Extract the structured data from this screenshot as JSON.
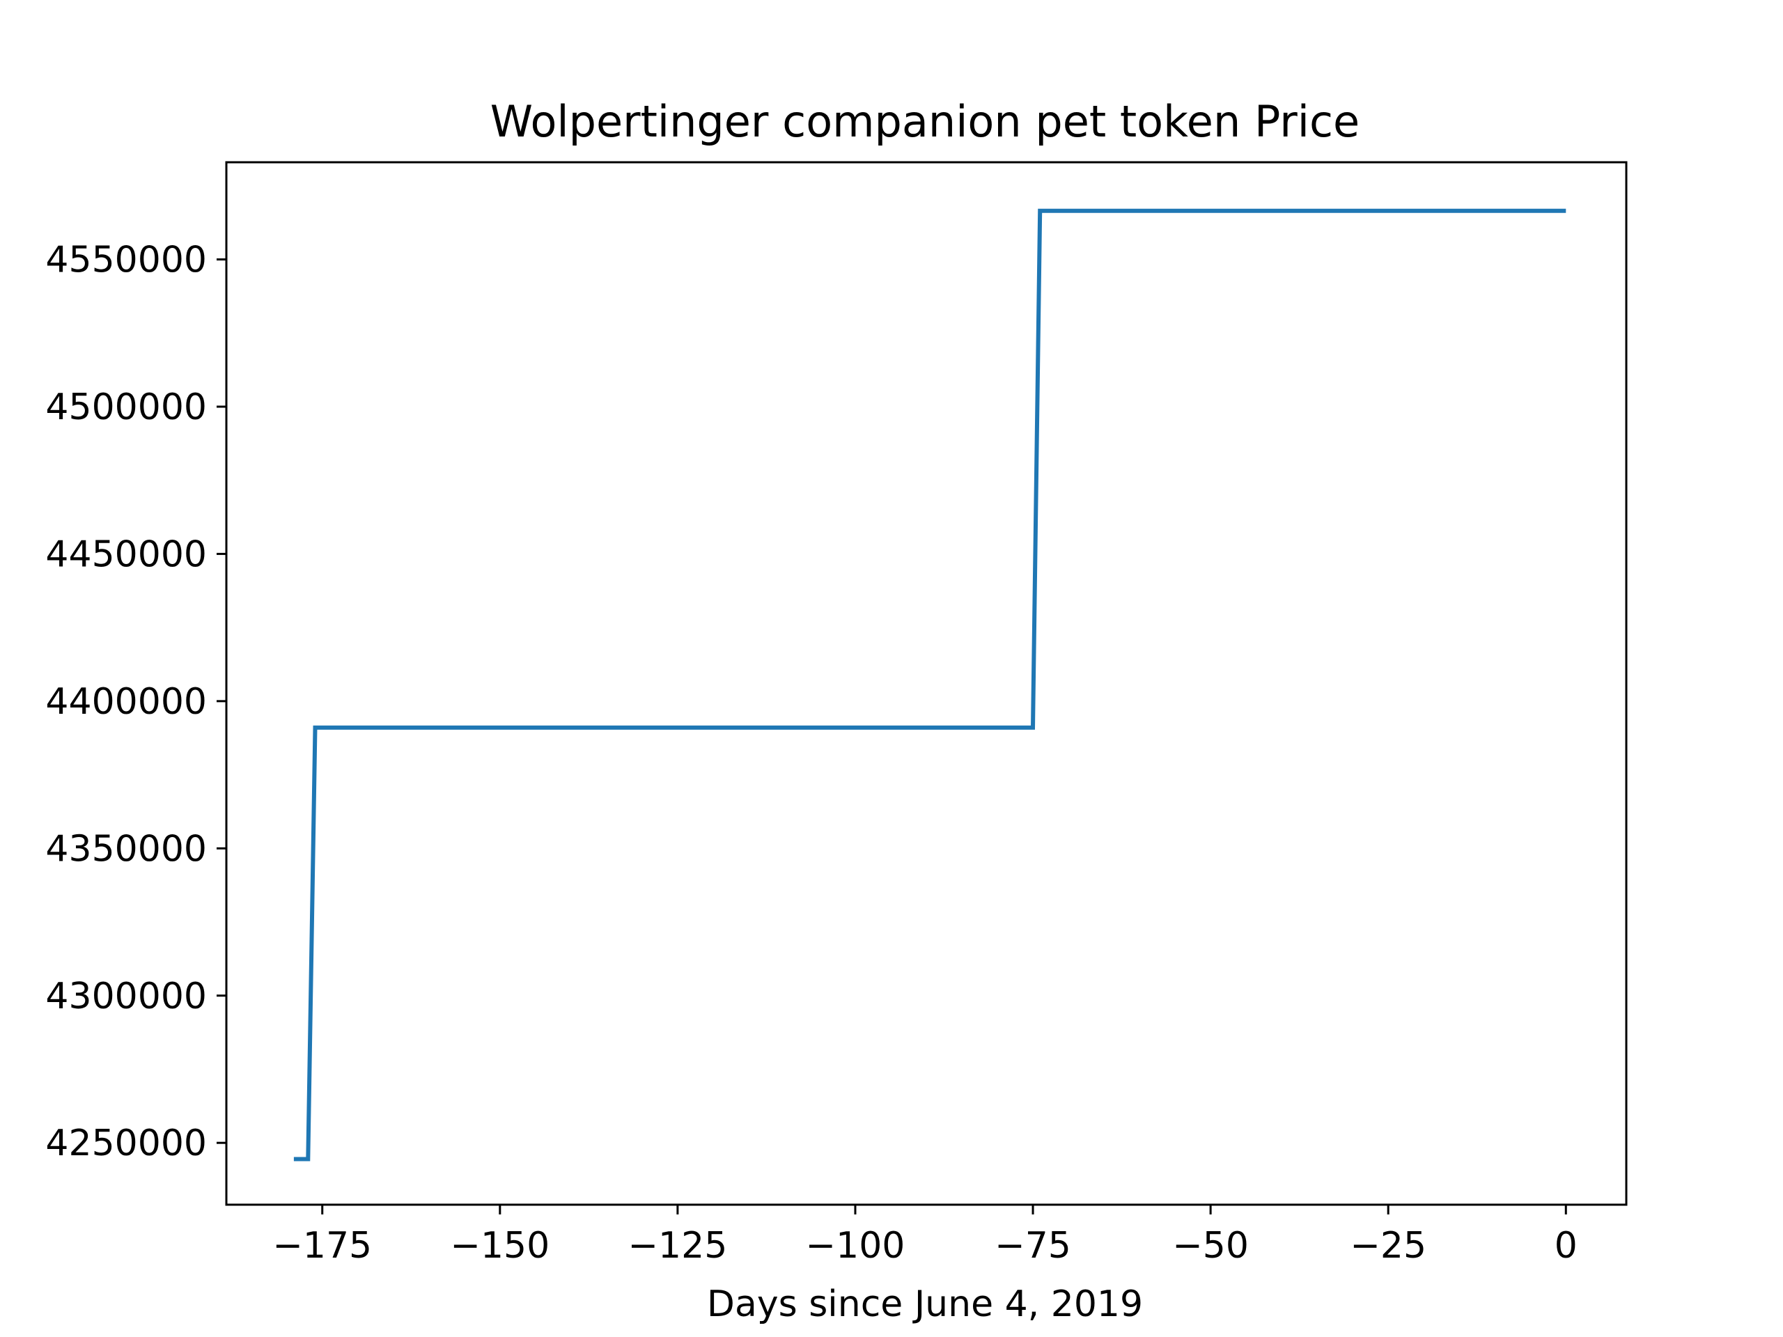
{
  "chart_data": {
    "type": "line",
    "title": "Wolpertinger companion pet token Price",
    "xlabel": "Days since June 4, 2019",
    "ylabel": "",
    "xlim": [
      -188.5,
      8.5
    ],
    "ylim": [
      4229000,
      4583000
    ],
    "xticks": [
      -175,
      -150,
      -125,
      -100,
      -75,
      -50,
      -25,
      0
    ],
    "xtick_labels": [
      "−175",
      "−150",
      "−125",
      "−100",
      "−75",
      "−50",
      "−25",
      "0"
    ],
    "yticks": [
      4250000,
      4300000,
      4350000,
      4400000,
      4450000,
      4500000,
      4550000
    ],
    "ytick_labels": [
      "4250000",
      "4300000",
      "4350000",
      "4400000",
      "4450000",
      "4500000",
      "4550000"
    ],
    "grid": false,
    "legend": "none",
    "series_color": "#1f77b4",
    "series": [
      {
        "x": [
          -179,
          -178,
          -177,
          -176,
          -175,
          -76,
          -75,
          -74,
          0
        ],
        "y": [
          4244500,
          4244500,
          4244500,
          4391000,
          4391000,
          4391000,
          4391000,
          4566500,
          4566500
        ]
      }
    ]
  }
}
